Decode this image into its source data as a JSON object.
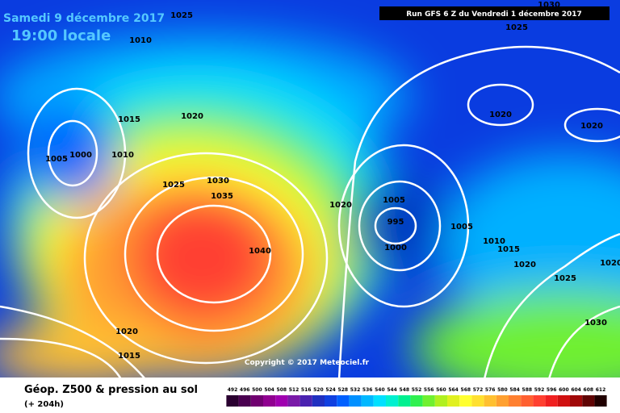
{
  "header": {
    "date": "Samedi 9 décembre 2017",
    "time": "19:00 locale",
    "run": "Run GFS 6 Z du Vendredi 1 décembre 2017"
  },
  "copyright": "Copyright © 2017 Meteociel.fr",
  "footer": {
    "title": "Géop. Z500 & pression au sol",
    "lead": "(+ 204h)"
  },
  "isobar_labels": [
    1025,
    1010,
    1025,
    1030,
    1015,
    1020,
    1005,
    1000,
    1010,
    1025,
    1030,
    1035,
    1040,
    1020,
    1005,
    995,
    1000,
    1020,
    1020,
    1005,
    1010,
    1015,
    1020,
    1025,
    1030,
    1020,
    1020,
    1015
  ],
  "legend": {
    "labels": [
      492,
      496,
      500,
      504,
      508,
      512,
      516,
      520,
      524,
      528,
      532,
      536,
      540,
      544,
      548,
      552,
      556,
      560,
      564,
      568,
      572,
      576,
      580,
      584,
      588,
      592,
      596,
      600,
      604,
      608,
      612
    ],
    "colors": [
      "#2a0030",
      "#4a0050",
      "#700070",
      "#900090",
      "#a000b0",
      "#7a1aa8",
      "#4a22b0",
      "#2030c0",
      "#1040e0",
      "#0060ff",
      "#0090ff",
      "#00b8ff",
      "#00e0ff",
      "#00f0d0",
      "#00f090",
      "#30f050",
      "#70f030",
      "#b0f020",
      "#e0f020",
      "#ffff30",
      "#ffe030",
      "#ffc030",
      "#ffa030",
      "#ff8030",
      "#ff6030",
      "#ff4030",
      "#f02020",
      "#d01010",
      "#a00808",
      "#600404",
      "#200000"
    ]
  }
}
